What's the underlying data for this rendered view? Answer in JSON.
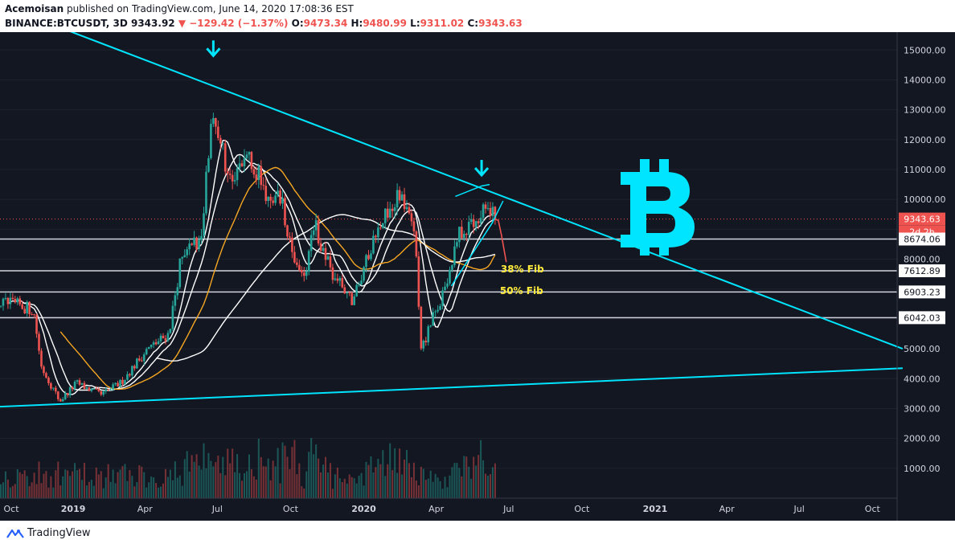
{
  "header": {
    "author": "Acemoisan",
    "published_text": "published on TradingView.com, June 14, 2020 17:08:36 EST",
    "symbol": "BINANCE:BTCUSDT, 3D",
    "last": "9343.92",
    "change": "−129.42 (−1.37%)",
    "o_label": "O:",
    "o_val": "9473.34",
    "h_label": "H:",
    "h_val": "9480.99",
    "l_label": "L:",
    "l_val": "9311.02",
    "c_label": "C:",
    "c_val": "9343.63"
  },
  "footer": {
    "brand": "TradingView"
  },
  "chart_data": {
    "type": "candlestick",
    "y_axis": {
      "ylim": [
        0,
        15600
      ],
      "ticks": [
        1000,
        2000,
        3000,
        4000,
        5000,
        6000,
        7000,
        8000,
        9000,
        10000,
        11000,
        12000,
        13000,
        14000,
        15000
      ]
    },
    "x_axis": {
      "labels": [
        "Oct",
        "2019",
        "Apr",
        "Jul",
        "Oct",
        "2020",
        "Apr",
        "Jul",
        "Oct",
        "2021",
        "Apr",
        "Jul",
        "Oct"
      ],
      "xlim": [
        "2018-10-01",
        "2021-11-01"
      ]
    },
    "price_labels": [
      {
        "text": "9343.63",
        "value": 9343.63,
        "style": "current"
      },
      {
        "text": "2d 2h",
        "value": 8910,
        "style": "countdown"
      },
      {
        "text": "8674.06",
        "value": 8674.06,
        "style": "level"
      },
      {
        "text": "7612.89",
        "value": 7612.89,
        "style": "level"
      },
      {
        "text": "6903.23",
        "value": 6903.23,
        "style": "level"
      },
      {
        "text": "6042.03",
        "value": 6042.03,
        "style": "level"
      }
    ],
    "horizontal_levels": [
      8674.06,
      7612.89,
      6903.23,
      6042.03
    ],
    "current_price": 9343.63,
    "annotations": [
      {
        "text": "38% Fib",
        "date": "2020-06-21",
        "value": 7560
      },
      {
        "text": "50% Fib",
        "date": "2020-06-20",
        "value": 6830
      }
    ],
    "trendlines": [
      {
        "from": [
          "2018-12-01",
          15900
        ],
        "to": [
          "2021-11-08",
          5000
        ]
      },
      {
        "from": [
          "2018-09-20",
          3050
        ],
        "to": [
          "2021-11-08",
          4350
        ]
      }
    ],
    "colors": {
      "up": "#26a69a",
      "down": "#ef5350",
      "trendline": "#00e5ff",
      "bitcoin": "#00e5ff",
      "fib": "#ffeb3b",
      "ma_white": "#ffffff",
      "ma_orange": "#f5a623",
      "background": "#131722"
    },
    "icons": [
      "down-arrow-icon",
      "down-arrow-icon",
      "bitcoin-logo-icon",
      "tradingview-logo-icon"
    ],
    "candle_period_days": 3
  }
}
